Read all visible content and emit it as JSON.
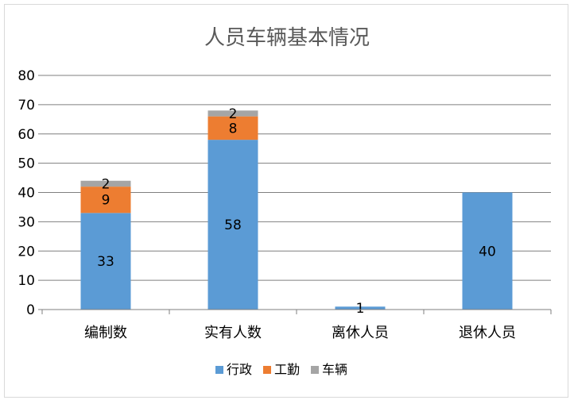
{
  "chart_data": {
    "type": "bar",
    "stacked": true,
    "title": "人员车辆基本情况",
    "categories": [
      "编制数",
      "实有人数",
      "离休人员",
      "退休人员"
    ],
    "series": [
      {
        "name": "行政",
        "color": "#5b9bd5",
        "values": [
          33,
          58,
          1,
          40
        ],
        "labels": [
          "33",
          "58",
          "1",
          "40"
        ]
      },
      {
        "name": "工勤",
        "color": "#ed7d31",
        "values": [
          9,
          8,
          0,
          0
        ],
        "labels": [
          "9",
          "8",
          "",
          ""
        ]
      },
      {
        "name": "车辆",
        "color": "#a5a5a5",
        "values": [
          2,
          2,
          0,
          0
        ],
        "labels": [
          "2",
          "2",
          "",
          ""
        ]
      }
    ],
    "ylim": [
      0,
      80
    ],
    "yticks": [
      0,
      10,
      20,
      30,
      40,
      50,
      60,
      70,
      80
    ],
    "grid": true,
    "legend_position": "bottom"
  }
}
